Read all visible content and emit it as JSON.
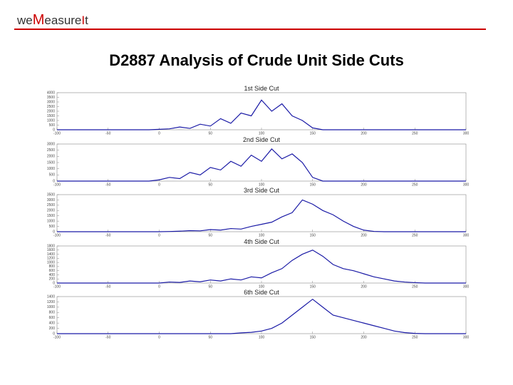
{
  "logo": {
    "parts": [
      "we",
      "M",
      "easure",
      "I",
      "t"
    ]
  },
  "title": "D2887 Analysis of Crude Unit Side Cuts",
  "chart_data": [
    {
      "type": "line",
      "title": "1st Side Cut",
      "color": "#1a1aa6",
      "x": [
        -100,
        -90,
        -80,
        -70,
        -60,
        -50,
        -40,
        -30,
        -20,
        -10,
        0,
        10,
        20,
        30,
        40,
        50,
        60,
        70,
        80,
        90,
        100,
        110,
        120,
        130,
        140,
        150,
        160,
        170,
        180,
        190,
        200,
        210,
        220,
        230,
        240,
        250,
        260,
        270,
        280,
        290,
        300
      ],
      "values": [
        0,
        0,
        0,
        0,
        0,
        0,
        0,
        0,
        0,
        0,
        50,
        100,
        300,
        150,
        600,
        400,
        1200,
        700,
        1800,
        1500,
        3200,
        2000,
        2800,
        1500,
        1000,
        200,
        0,
        0,
        0,
        0,
        0,
        0,
        0,
        0,
        0,
        0,
        0,
        0,
        0,
        0,
        0
      ],
      "xlim": [
        -100,
        300
      ],
      "xticks": [
        -100,
        -50,
        0,
        50,
        100,
        150,
        200,
        250,
        300
      ],
      "ylim": [
        0,
        4000
      ],
      "yticks": [
        0,
        500,
        1000,
        1500,
        2000,
        2500,
        3000,
        3500,
        4000
      ]
    },
    {
      "type": "line",
      "title": "2nd Side Cut",
      "color": "#1a1aa6",
      "x": [
        -100,
        -90,
        -80,
        -70,
        -60,
        -50,
        -40,
        -30,
        -20,
        -10,
        0,
        10,
        20,
        30,
        40,
        50,
        60,
        70,
        80,
        90,
        100,
        110,
        120,
        130,
        140,
        150,
        160,
        170,
        180,
        190,
        200,
        210,
        220,
        230,
        240,
        250,
        260,
        270,
        280,
        290,
        300
      ],
      "values": [
        0,
        0,
        0,
        0,
        0,
        0,
        0,
        0,
        0,
        0,
        100,
        300,
        200,
        700,
        500,
        1100,
        900,
        1600,
        1200,
        2100,
        1600,
        2600,
        1800,
        2200,
        1500,
        300,
        0,
        0,
        0,
        0,
        0,
        0,
        0,
        0,
        0,
        0,
        0,
        0,
        0,
        0,
        0
      ],
      "xlim": [
        -100,
        300
      ],
      "xticks": [
        -100,
        -50,
        0,
        50,
        100,
        150,
        200,
        250,
        300
      ],
      "ylim": [
        0,
        3000
      ],
      "yticks": [
        0,
        500,
        1000,
        1500,
        2000,
        2500,
        3000
      ]
    },
    {
      "type": "line",
      "title": "3rd Side Cut",
      "color": "#1a1aa6",
      "x": [
        -100,
        -90,
        -80,
        -70,
        -60,
        -50,
        -40,
        -30,
        -20,
        -10,
        0,
        10,
        20,
        30,
        40,
        50,
        60,
        70,
        80,
        90,
        100,
        110,
        120,
        130,
        140,
        150,
        160,
        170,
        180,
        190,
        200,
        210,
        220,
        230,
        240,
        250,
        260,
        270,
        280,
        290,
        300
      ],
      "values": [
        0,
        0,
        0,
        0,
        0,
        0,
        0,
        0,
        0,
        0,
        0,
        20,
        50,
        100,
        80,
        200,
        150,
        300,
        250,
        500,
        700,
        900,
        1400,
        1800,
        3000,
        2600,
        2000,
        1600,
        1000,
        500,
        150,
        30,
        0,
        0,
        0,
        0,
        0,
        0,
        0,
        0,
        0
      ],
      "xlim": [
        -100,
        300
      ],
      "xticks": [
        -100,
        -50,
        0,
        50,
        100,
        150,
        200,
        250,
        300
      ],
      "ylim": [
        0,
        3500
      ],
      "yticks": [
        0,
        500,
        1000,
        1500,
        2000,
        2500,
        3000,
        3500
      ]
    },
    {
      "type": "line",
      "title": "4th Side Cut",
      "color": "#1a1aa6",
      "x": [
        -100,
        -90,
        -80,
        -70,
        -60,
        -50,
        -40,
        -30,
        -20,
        -10,
        0,
        10,
        20,
        30,
        40,
        50,
        60,
        70,
        80,
        90,
        100,
        110,
        120,
        130,
        140,
        150,
        160,
        170,
        180,
        190,
        200,
        210,
        220,
        230,
        240,
        250,
        260,
        270,
        280,
        290,
        300
      ],
      "values": [
        0,
        0,
        0,
        0,
        0,
        0,
        0,
        0,
        0,
        0,
        0,
        50,
        30,
        100,
        60,
        150,
        100,
        200,
        150,
        300,
        250,
        500,
        700,
        1100,
        1400,
        1600,
        1300,
        900,
        700,
        600,
        450,
        300,
        200,
        100,
        50,
        20,
        0,
        0,
        0,
        0,
        0
      ],
      "xlim": [
        -100,
        300
      ],
      "xticks": [
        -100,
        -50,
        0,
        50,
        100,
        150,
        200,
        250,
        300
      ],
      "ylim": [
        0,
        1800
      ],
      "yticks": [
        0,
        200,
        400,
        600,
        800,
        1000,
        1200,
        1400,
        1600,
        1800
      ]
    },
    {
      "type": "line",
      "title": "6th Side Cut",
      "color": "#1a1aa6",
      "x": [
        -100,
        -90,
        -80,
        -70,
        -60,
        -50,
        -40,
        -30,
        -20,
        -10,
        0,
        10,
        20,
        30,
        40,
        50,
        60,
        70,
        80,
        90,
        100,
        110,
        120,
        130,
        140,
        150,
        160,
        170,
        180,
        190,
        200,
        210,
        220,
        230,
        240,
        250,
        260,
        270,
        280,
        290,
        300
      ],
      "values": [
        0,
        0,
        0,
        0,
        0,
        0,
        0,
        0,
        0,
        0,
        0,
        0,
        0,
        0,
        0,
        0,
        0,
        0,
        30,
        50,
        100,
        200,
        400,
        700,
        1000,
        1300,
        1000,
        700,
        600,
        500,
        400,
        300,
        200,
        100,
        40,
        10,
        0,
        0,
        0,
        0,
        0
      ],
      "xlim": [
        -100,
        300
      ],
      "xticks": [
        -100,
        -50,
        0,
        50,
        100,
        150,
        200,
        250,
        300
      ],
      "ylim": [
        0,
        1400
      ],
      "yticks": [
        0,
        200,
        400,
        600,
        800,
        1000,
        1200,
        1400
      ]
    }
  ]
}
